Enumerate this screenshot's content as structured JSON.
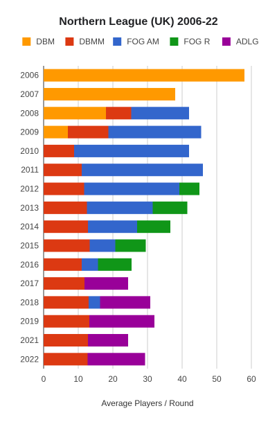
{
  "chart_data": {
    "type": "bar",
    "orientation": "horizontal",
    "stacked": true,
    "title": "Northern League (UK) 2006-22",
    "xlabel": "Average Players / Round",
    "ylabel": "",
    "xlim": [
      0,
      60
    ],
    "xticks": [
      0,
      10,
      20,
      30,
      40,
      50,
      60
    ],
    "grid": "vertical",
    "legend_position": "top",
    "categories": [
      "2006",
      "2007",
      "2008",
      "2009",
      "2010",
      "2011",
      "2012",
      "2013",
      "2014",
      "2015",
      "2016",
      "2017",
      "2018",
      "2019",
      "2021",
      "2022"
    ],
    "series": [
      {
        "name": "DBM",
        "color": "#ff9900",
        "values": [
          58,
          38,
          18,
          7,
          0,
          0,
          0,
          0,
          0,
          0,
          0,
          0,
          0,
          0,
          0,
          0
        ]
      },
      {
        "name": "DBMM",
        "color": "#dc3912",
        "values": [
          0,
          0,
          7.3,
          11.7,
          8.8,
          11,
          11.7,
          12.5,
          12.8,
          13.3,
          11,
          11.8,
          13,
          13.2,
          12.8,
          12.7
        ]
      },
      {
        "name": "FOG AM",
        "color": "#3366cc",
        "values": [
          0,
          0,
          16.7,
          26.8,
          33.2,
          35,
          27.5,
          19,
          14.2,
          7.4,
          4.7,
          0,
          3.3,
          0,
          0,
          0
        ]
      },
      {
        "name": "FOG R",
        "color": "#109618",
        "values": [
          0,
          0,
          0,
          0,
          0,
          0,
          5.8,
          10,
          9.6,
          8.8,
          9.7,
          0,
          0,
          0,
          0,
          0
        ]
      },
      {
        "name": "ADLG",
        "color": "#990099",
        "values": [
          0,
          0,
          0,
          0,
          0,
          0,
          0,
          0,
          0,
          0,
          0,
          12.6,
          14.5,
          18.8,
          11.6,
          16.6
        ]
      }
    ]
  }
}
